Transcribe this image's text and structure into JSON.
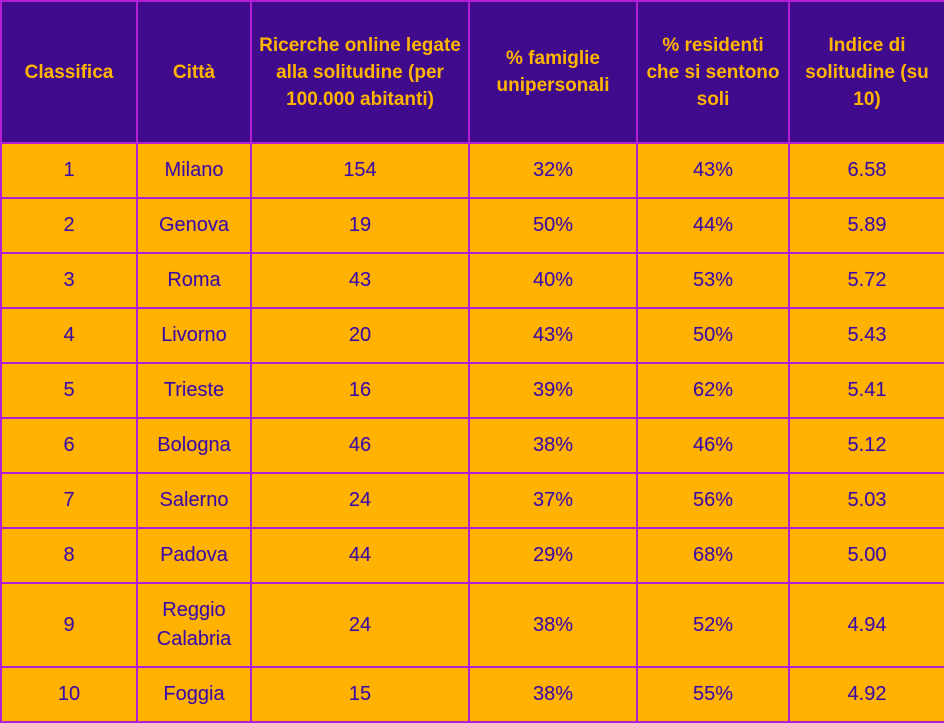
{
  "colors": {
    "header_bg": "#3f0a8c",
    "header_text": "#ffb400",
    "cell_bg": "#ffb200",
    "cell_text": "#3a0aa8",
    "grid": "#b21fd6"
  },
  "chart_data": {
    "type": "table",
    "columns": [
      "Classifica",
      "Città",
      "Ricerche online legate alla solitudine (per 100.000 abitanti)",
      "% famiglie unipersonali",
      "% residenti che si sentono soli",
      "Indice di solitudine (su 10)"
    ],
    "rows": [
      [
        "1",
        "Milano",
        "154",
        "32%",
        "43%",
        "6.58"
      ],
      [
        "2",
        "Genova",
        "19",
        "50%",
        "44%",
        "5.89"
      ],
      [
        "3",
        "Roma",
        "43",
        "40%",
        "53%",
        "5.72"
      ],
      [
        "4",
        "Livorno",
        "20",
        "43%",
        "50%",
        "5.43"
      ],
      [
        "5",
        "Trieste",
        "16",
        "39%",
        "62%",
        "5.41"
      ],
      [
        "6",
        "Bologna",
        "46",
        "38%",
        "46%",
        "5.12"
      ],
      [
        "7",
        "Salerno",
        "24",
        "37%",
        "56%",
        "5.03"
      ],
      [
        "8",
        "Padova",
        "44",
        "29%",
        "68%",
        "5.00"
      ],
      [
        "9",
        "Reggio Calabria",
        "24",
        "38%",
        "52%",
        "4.94"
      ],
      [
        "10",
        "Foggia",
        "15",
        "38%",
        "55%",
        "4.92"
      ]
    ]
  }
}
